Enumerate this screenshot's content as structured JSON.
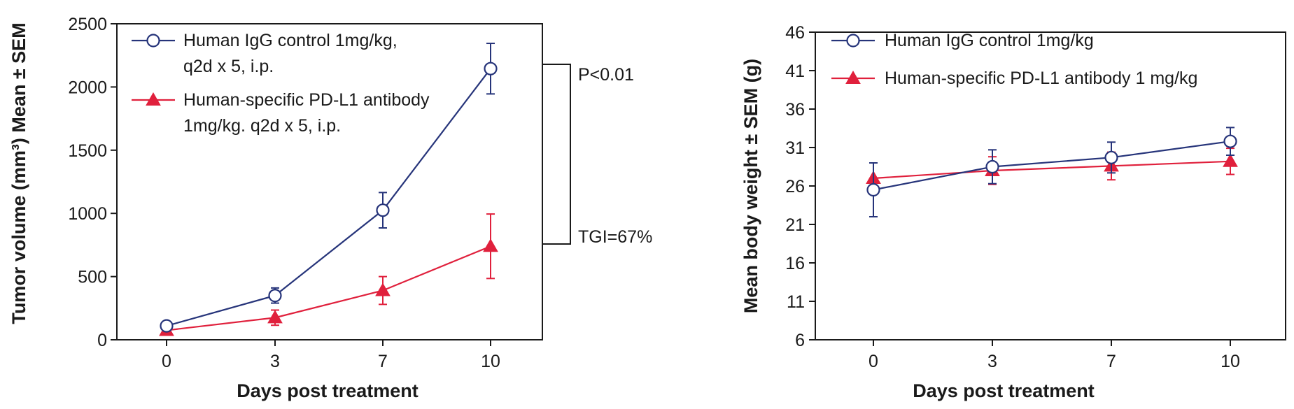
{
  "chart_data": [
    {
      "type": "line",
      "title": "",
      "xlabel": "Days post treatment",
      "ylabel": "Tumor volume (mm³) Mean ± SEM",
      "categories": [
        "0",
        "3",
        "7",
        "10"
      ],
      "x": [
        0,
        3,
        7,
        10
      ],
      "ylim": [
        0,
        2500
      ],
      "yticks": [
        0,
        500,
        1000,
        1500,
        2000,
        2500
      ],
      "series": [
        {
          "name": "Human IgG control 1mg/kg, q2d x 5, i.p.",
          "legend_lines": [
            "Human IgG control 1mg/kg,",
            "q2d x 5, i.p."
          ],
          "marker": "open-circle",
          "color": "#26347a",
          "values": [
            110,
            350,
            1025,
            2145
          ],
          "error": [
            20,
            60,
            140,
            200
          ]
        },
        {
          "name": "Human-specific PD-L1 antibody 1mg/kg. q2d x 5, i.p.",
          "legend_lines": [
            "Human-specific PD-L1 antibody",
            "1mg/kg. q2d x 5, i.p."
          ],
          "marker": "filled-triangle",
          "color": "#e0203c",
          "values": [
            75,
            175,
            390,
            740
          ],
          "error": [
            15,
            60,
            110,
            255
          ]
        }
      ],
      "annotations": {
        "p_value": "P<0.01",
        "tgi": "TGI=67%"
      }
    },
    {
      "type": "line",
      "title": "",
      "xlabel": "Days post treatment",
      "ylabel": "Mean body weight ± SEM (g)",
      "categories": [
        "0",
        "3",
        "7",
        "10"
      ],
      "x": [
        0,
        3,
        7,
        10
      ],
      "ylim": [
        6,
        46
      ],
      "yticks": [
        6,
        11,
        16,
        21,
        26,
        31,
        36,
        41,
        46
      ],
      "series": [
        {
          "name": "Human IgG control 1mg/kg",
          "legend_lines": [
            "Human IgG control 1mg/kg"
          ],
          "marker": "open-circle",
          "color": "#26347a",
          "values": [
            25.5,
            28.5,
            29.7,
            31.8
          ],
          "error": [
            3.5,
            2.2,
            2.0,
            1.8
          ]
        },
        {
          "name": "Human-specific PD-L1 antibody 1 mg/kg",
          "legend_lines": [
            "Human-specific PD-L1 antibody 1 mg/kg"
          ],
          "marker": "filled-triangle",
          "color": "#e0203c",
          "values": [
            27.0,
            28.0,
            28.6,
            29.2
          ],
          "error": [
            2.0,
            1.8,
            1.8,
            1.7
          ]
        }
      ]
    }
  ]
}
